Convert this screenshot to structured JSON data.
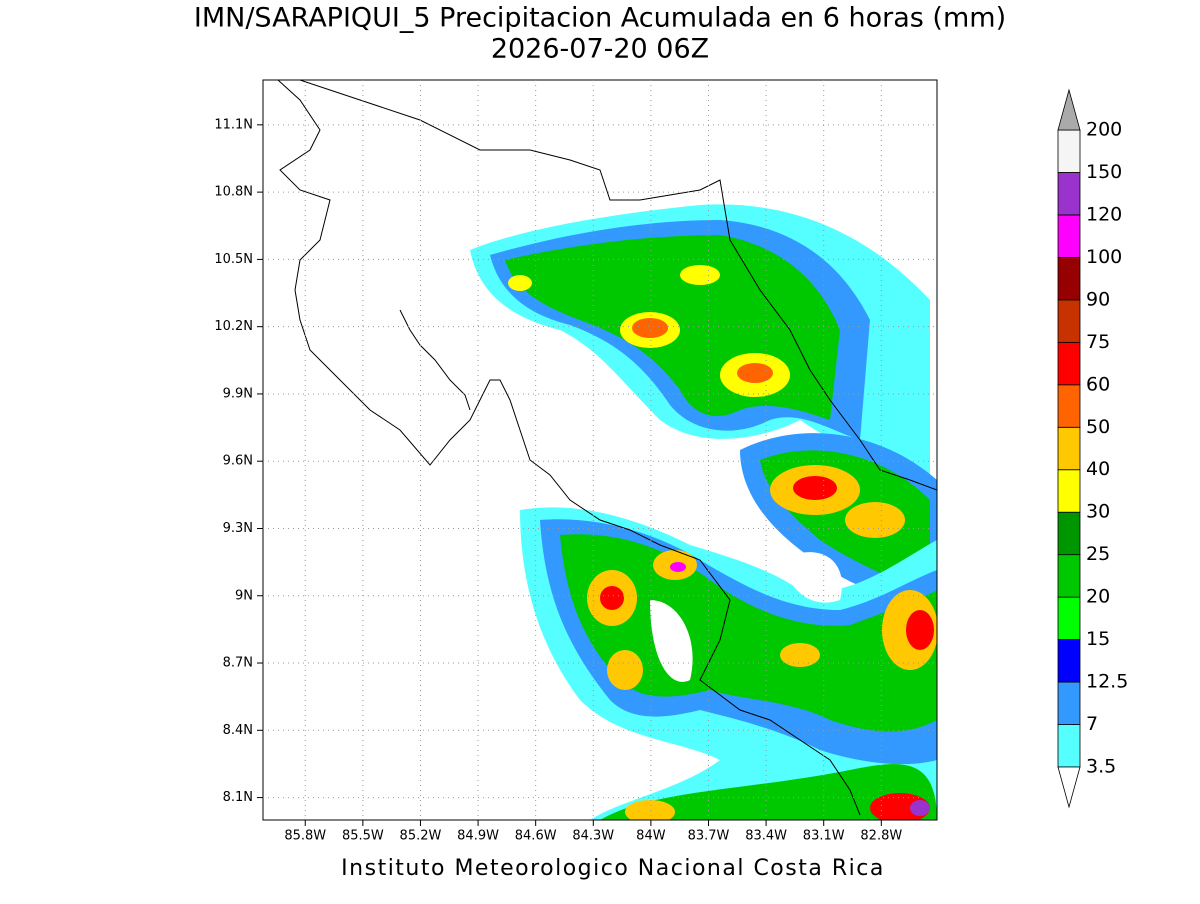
{
  "title": "IMN/SARAPIQUI_5 Precipitacion Acumulada en 6 horas (mm)",
  "subtitle": "2026-07-20 06Z",
  "footer": "Instituto Meteorologico Nacional Costa Rica",
  "map": {
    "xlim": [
      -86.02,
      -82.51
    ],
    "ylim": [
      8.0,
      11.3
    ],
    "xticks": [
      {
        "value": -85.8,
        "label": "85.8W"
      },
      {
        "value": -85.5,
        "label": "85.5W"
      },
      {
        "value": -85.2,
        "label": "85.2W"
      },
      {
        "value": -84.9,
        "label": "84.9W"
      },
      {
        "value": -84.6,
        "label": "84.6W"
      },
      {
        "value": -84.3,
        "label": "84.3W"
      },
      {
        "value": -84.0,
        "label": "84W"
      },
      {
        "value": -83.7,
        "label": "83.7W"
      },
      {
        "value": -83.4,
        "label": "83.4W"
      },
      {
        "value": -83.1,
        "label": "83.1W"
      },
      {
        "value": -82.8,
        "label": "82.8W"
      }
    ],
    "yticks": [
      {
        "value": 8.1,
        "label": "8.1N"
      },
      {
        "value": 8.4,
        "label": "8.4N"
      },
      {
        "value": 8.7,
        "label": "8.7N"
      },
      {
        "value": 9.0,
        "label": "9N"
      },
      {
        "value": 9.3,
        "label": "9.3N"
      },
      {
        "value": 9.6,
        "label": "9.6N"
      },
      {
        "value": 9.9,
        "label": "9.9N"
      },
      {
        "value": 10.2,
        "label": "10.2N"
      },
      {
        "value": 10.5,
        "label": "10.5N"
      },
      {
        "value": 10.8,
        "label": "10.8N"
      },
      {
        "value": 11.1,
        "label": "11.1N"
      }
    ],
    "grid": true
  },
  "colorbar": {
    "levels": [
      3.5,
      7,
      12.5,
      15,
      20,
      25,
      30,
      40,
      50,
      60,
      75,
      90,
      100,
      120,
      150,
      200
    ],
    "colors": [
      "#55ffff",
      "#3399ff",
      "#0000ff",
      "#00ff00",
      "#00c800",
      "#009600",
      "#ffff00",
      "#ffc800",
      "#ff6400",
      "#ff0000",
      "#c83200",
      "#960000",
      "#ff00ff",
      "#9933cc",
      "#f5f5f5"
    ],
    "under_color": "#ffffff",
    "over_color": "#aaaaaa"
  }
}
